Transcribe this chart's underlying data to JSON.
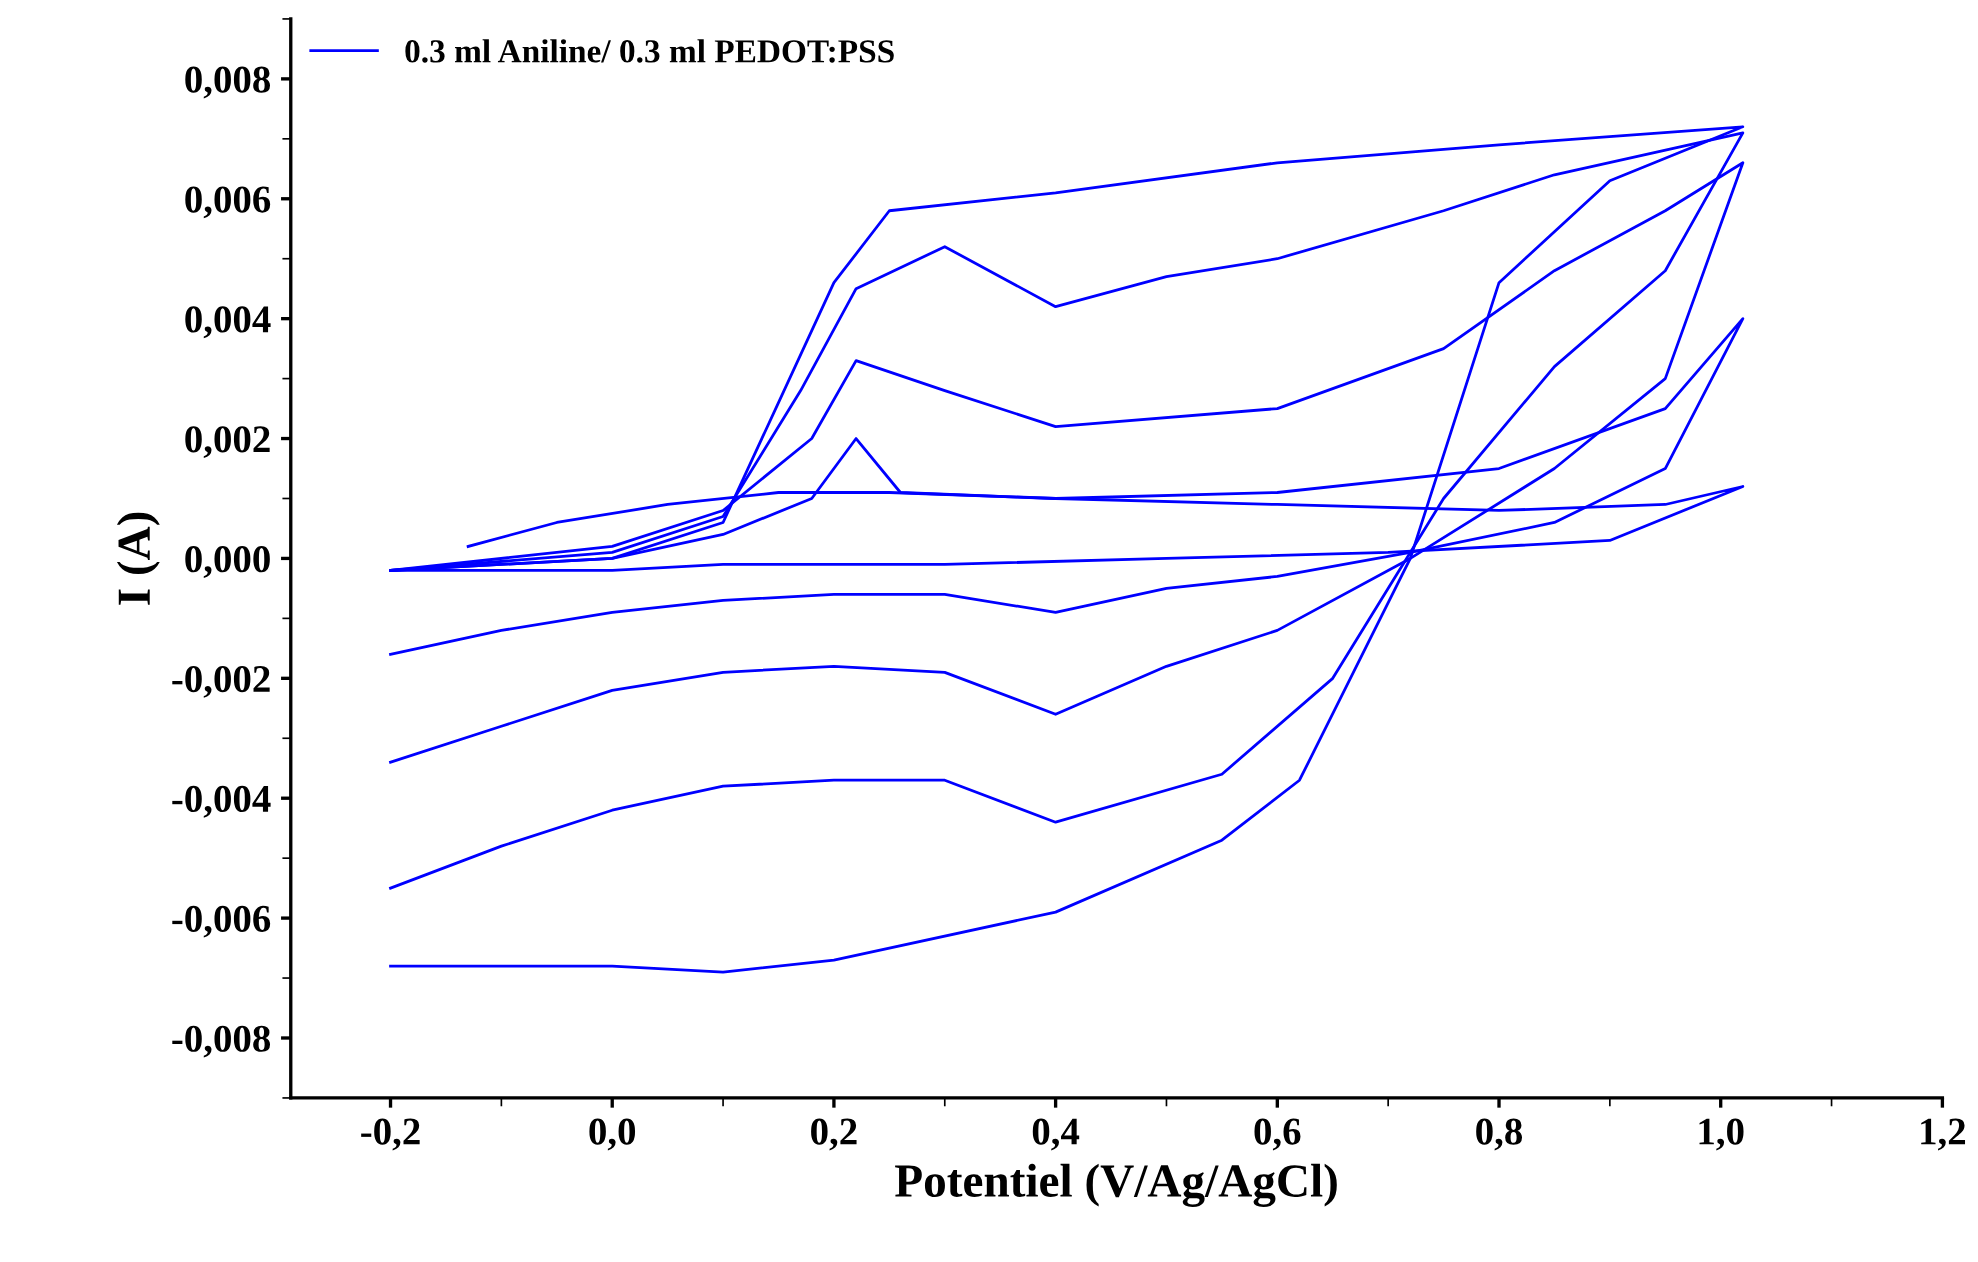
{
  "chart_data": {
    "type": "line",
    "xlabel": "Potentiel (V/Ag/AgCl)",
    "ylabel": "I (A)",
    "xlim": [
      -0.29,
      1.2
    ],
    "ylim": [
      -0.009,
      0.009
    ],
    "xticks": [
      {
        "value": -0.2,
        "label": "-0,2"
      },
      {
        "value": 0.0,
        "label": "0,0"
      },
      {
        "value": 0.2,
        "label": "0,2"
      },
      {
        "value": 0.4,
        "label": "0,4"
      },
      {
        "value": 0.6,
        "label": "0,6"
      },
      {
        "value": 0.8,
        "label": "0,8"
      },
      {
        "value": 1.0,
        "label": "1,0"
      },
      {
        "value": 1.2,
        "label": "1,2"
      }
    ],
    "yticks": [
      {
        "value": -0.008,
        "label": "-0,008"
      },
      {
        "value": -0.006,
        "label": "-0,006"
      },
      {
        "value": -0.004,
        "label": "-0,004"
      },
      {
        "value": -0.002,
        "label": "-0,002"
      },
      {
        "value": 0.0,
        "label": "0,000"
      },
      {
        "value": 0.002,
        "label": "0,002"
      },
      {
        "value": 0.004,
        "label": "0,004"
      },
      {
        "value": 0.006,
        "label": "0,006"
      },
      {
        "value": 0.008,
        "label": "0,008"
      }
    ],
    "grid": false,
    "legend": "top left",
    "marker": "none",
    "line_style": "solid",
    "series": [
      {
        "name": "0.3 ml Aniline/ 0.3 ml PEDOT:PSS",
        "color": "#0000ff",
        "x": [
          -0.13,
          -0.05,
          0.05,
          0.15,
          0.25,
          0.4,
          0.6,
          0.8,
          0.95,
          1.02,
          0.9,
          0.7,
          0.5,
          0.3,
          0.1,
          0.0,
          -0.2
        ],
        "values": [
          0.0002,
          0.0006,
          0.0009,
          0.0011,
          0.0011,
          0.001,
          0.0009,
          0.0008,
          0.0009,
          0.0012,
          0.0003,
          0.0001,
          0.0,
          -0.0001,
          -0.0001,
          -0.0002,
          -0.0002
        ]
      },
      {
        "color": "#0000ff",
        "x": [
          -0.2,
          0.0,
          0.1,
          0.18,
          0.22,
          0.26,
          0.4,
          0.6,
          0.8,
          0.95,
          1.02,
          0.95,
          0.85,
          0.72,
          0.6,
          0.5,
          0.4,
          0.3,
          0.2,
          0.1,
          0.0,
          -0.1,
          -0.2
        ],
        "values": [
          -0.0002,
          0.0,
          0.0004,
          0.001,
          0.002,
          0.0011,
          0.001,
          0.0011,
          0.0015,
          0.0025,
          0.004,
          0.0015,
          0.0006,
          0.0001,
          -0.0003,
          -0.0005,
          -0.0009,
          -0.0006,
          -0.0006,
          -0.0007,
          -0.0009,
          -0.0012,
          -0.0016
        ]
      },
      {
        "color": "#0000ff",
        "x": [
          -0.2,
          0.0,
          0.1,
          0.18,
          0.22,
          0.3,
          0.4,
          0.6,
          0.75,
          0.85,
          0.95,
          1.02,
          0.95,
          0.85,
          0.72,
          0.6,
          0.5,
          0.4,
          0.3,
          0.2,
          0.1,
          0.0,
          -0.1,
          -0.2
        ],
        "values": [
          -0.0002,
          0.0002,
          0.0008,
          0.002,
          0.0033,
          0.0028,
          0.0022,
          0.0025,
          0.0035,
          0.0048,
          0.0058,
          0.0066,
          0.003,
          0.0015,
          0.0,
          -0.0012,
          -0.0018,
          -0.0026,
          -0.0019,
          -0.0018,
          -0.0019,
          -0.0022,
          -0.0028,
          -0.0034
        ]
      },
      {
        "color": "#0000ff",
        "x": [
          -0.2,
          0.0,
          0.1,
          0.17,
          0.22,
          0.3,
          0.4,
          0.5,
          0.6,
          0.75,
          0.85,
          1.02,
          0.95,
          0.85,
          0.75,
          0.65,
          0.55,
          0.4,
          0.3,
          0.2,
          0.1,
          0.0,
          -0.1,
          -0.2
        ],
        "values": [
          -0.0002,
          0.0001,
          0.0007,
          0.0028,
          0.0045,
          0.0052,
          0.0042,
          0.0047,
          0.005,
          0.0058,
          0.0064,
          0.0071,
          0.0048,
          0.0032,
          0.001,
          -0.002,
          -0.0036,
          -0.0044,
          -0.0037,
          -0.0037,
          -0.0038,
          -0.0042,
          -0.0048,
          -0.0055
        ]
      },
      {
        "color": "#0000ff",
        "x": [
          -0.2,
          0.0,
          0.1,
          0.15,
          0.2,
          0.25,
          0.4,
          0.6,
          0.8,
          1.02,
          0.9,
          0.8,
          0.72,
          0.62,
          0.55,
          0.4,
          0.2,
          0.1,
          0.0,
          -0.2
        ],
        "values": [
          -0.0002,
          0.0,
          0.0006,
          0.0026,
          0.0046,
          0.0058,
          0.0061,
          0.0066,
          0.0069,
          0.0072,
          0.0063,
          0.0046,
          0.0,
          -0.0037,
          -0.0047,
          -0.0059,
          -0.0067,
          -0.0069,
          -0.0068,
          -0.0068
        ]
      }
    ]
  }
}
